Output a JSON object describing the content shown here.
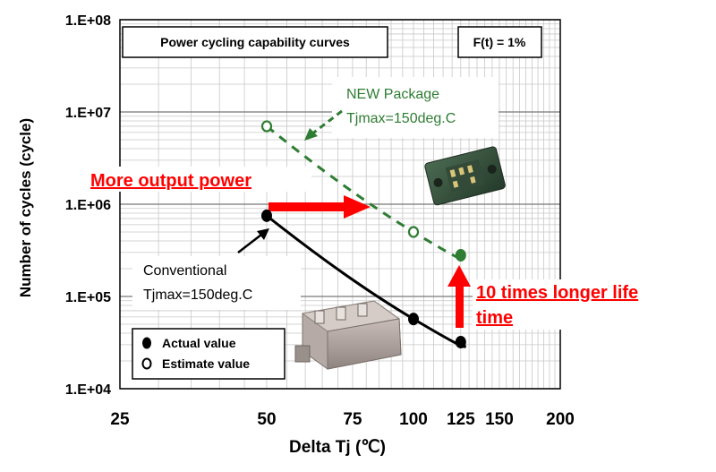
{
  "chart_data": {
    "type": "line",
    "title": "Power cycling capability curves",
    "condition": "F(t) = 1%",
    "xlabel": "Delta Tj (℃)",
    "ylabel": "Number of cycles (cycle)",
    "x_scale": "log",
    "y_scale": "log",
    "xlim": [
      25,
      200
    ],
    "ylim": [
      10000,
      100000000
    ],
    "x_ticks": [
      25,
      50,
      75,
      100,
      125,
      150,
      200
    ],
    "x_tick_labels": [
      "25",
      "50",
      "75",
      "100",
      "125",
      "150",
      "200"
    ],
    "y_ticks": [
      10000,
      100000,
      1000000,
      10000000,
      100000000
    ],
    "y_tick_labels": [
      "1.E+04",
      "1.E+05",
      "1.E+06",
      "1.E+07",
      "1.E+08"
    ],
    "grid": true,
    "series": [
      {
        "key": "conventional",
        "color": "#000000",
        "line_style": "solid",
        "points": [
          {
            "x": 50,
            "y": 750000,
            "marker": "actual"
          },
          {
            "x": 100,
            "y": 57000,
            "marker": "actual"
          },
          {
            "x": 125,
            "y": 32000,
            "marker": "actual"
          }
        ]
      },
      {
        "key": "new_package",
        "color": "#2e7d32",
        "line_style": "dashed",
        "points": [
          {
            "x": 50,
            "y": 7000000,
            "marker": "estimate"
          },
          {
            "x": 100,
            "y": 500000,
            "marker": "estimate"
          },
          {
            "x": 125,
            "y": 280000,
            "marker": "actual"
          }
        ]
      }
    ],
    "legend": {
      "position": "bottom-left",
      "items": [
        {
          "marker": "actual",
          "label": "Actual  value"
        },
        {
          "marker": "estimate",
          "label": "Estimate value"
        }
      ]
    },
    "annotations": {
      "new_package": {
        "line1": "NEW Package",
        "line2": "Tjmax=150deg.C",
        "color": "#2e7d32"
      },
      "conventional": {
        "line1": "Conventional",
        "line2": "Tjmax=150deg.C",
        "color": "#000000"
      },
      "output_power": {
        "text": "More output power",
        "color": "#ff0000"
      },
      "longer_life": {
        "line1": "10 times longer life",
        "line2": "time",
        "color": "#ff0000"
      }
    }
  }
}
